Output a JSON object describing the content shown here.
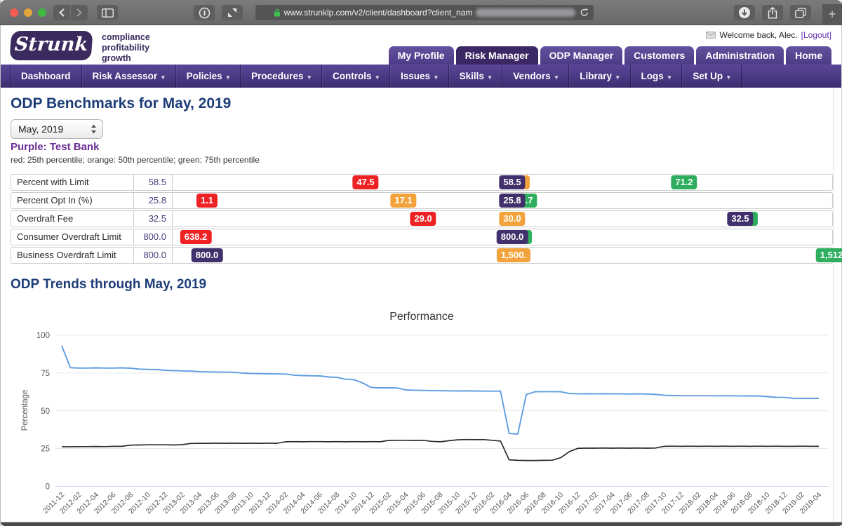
{
  "browser": {
    "url": "www.strunklp.com/v2/client/dashboard?client_nam",
    "new_tab_label": "+"
  },
  "header": {
    "logo_text": "Strunk",
    "tagline_lines": [
      "compliance",
      "profitability",
      "growth"
    ],
    "welcome_text": "Welcome back, Alec.",
    "logout_label": "[Logout]",
    "tabs": [
      {
        "label": "My Profile",
        "active": false
      },
      {
        "label": "Risk Manager",
        "active": true
      },
      {
        "label": "ODP Manager",
        "active": false
      },
      {
        "label": "Customers",
        "active": false
      },
      {
        "label": "Administration",
        "active": false
      },
      {
        "label": "Home",
        "active": false
      }
    ]
  },
  "nav": {
    "items": [
      {
        "label": "Dashboard",
        "caret": false
      },
      {
        "label": "Risk Assessor",
        "caret": true
      },
      {
        "label": "Policies",
        "caret": true
      },
      {
        "label": "Procedures",
        "caret": true
      },
      {
        "label": "Controls",
        "caret": true
      },
      {
        "label": "Issues",
        "caret": true
      },
      {
        "label": "Skills",
        "caret": true
      },
      {
        "label": "Vendors",
        "caret": true
      },
      {
        "label": "Library",
        "caret": true
      },
      {
        "label": "Logs",
        "caret": true
      },
      {
        "label": "Set Up",
        "caret": true
      }
    ]
  },
  "benchmarks": {
    "title": "ODP Benchmarks for May, 2019",
    "month_select_value": "May, 2019",
    "bank_label": "Purple: Test Bank",
    "legend": "red: 25th percentile; orange: 50th percentile; green: 75th percentile",
    "colors": {
      "red": "#ee2224",
      "orange": "#f2a33c",
      "green": "#2eae5e",
      "purple": "#41306b"
    },
    "rows": [
      {
        "label": "Percent with Limit",
        "value": "58.5",
        "badges": [
          {
            "text": "",
            "color": "orange",
            "center": 494,
            "z": 1,
            "sliver": true
          },
          {
            "text": "47.5",
            "color": "red",
            "center": 275,
            "z": 2
          },
          {
            "text": "58.5",
            "color": "purple",
            "center": 484,
            "z": 3
          },
          {
            "text": "71.2",
            "color": "green",
            "center": 729,
            "z": 2
          }
        ]
      },
      {
        "label": "Percent Opt In (%)",
        "value": "25.8",
        "badges": [
          {
            "text": "25.7",
            "color": "green",
            "center": 501,
            "z": 1
          },
          {
            "text": "1.1",
            "color": "red",
            "center": 49,
            "z": 2
          },
          {
            "text": "17.1",
            "color": "orange",
            "center": 329,
            "z": 2
          },
          {
            "text": "25.8",
            "color": "purple",
            "center": 484,
            "z": 3
          }
        ]
      },
      {
        "label": "Overdraft Fee",
        "value": "32.5",
        "badges": [
          {
            "text": "",
            "color": "green",
            "center": 819,
            "z": 1,
            "sliver": true
          },
          {
            "text": "29.0",
            "color": "red",
            "center": 357,
            "z": 2
          },
          {
            "text": "30.0",
            "color": "orange",
            "center": 484,
            "z": 2
          },
          {
            "text": "32.5",
            "color": "purple",
            "center": 809,
            "z": 3
          }
        ]
      },
      {
        "label": "Consumer Overdraft Limit",
        "value": "800.0",
        "badges": [
          {
            "text": "",
            "color": "green",
            "center": 497,
            "z": 1,
            "sliver": true
          },
          {
            "text": "638.2",
            "color": "red",
            "center": 33,
            "z": 2
          },
          {
            "text": "800.0",
            "color": "purple",
            "center": 484,
            "z": 3
          }
        ]
      },
      {
        "label": "Business Overdraft Limit",
        "value": "800.0",
        "badges": [
          {
            "text": "800.0",
            "color": "purple",
            "center": 49,
            "z": 2
          },
          {
            "text": "1,500.",
            "color": "orange",
            "center": 486,
            "z": 2
          },
          {
            "text": "1,512",
            "color": "green",
            "center": 939,
            "z": 2
          }
        ]
      }
    ]
  },
  "trends": {
    "title": "ODP Trends through May, 2019"
  },
  "chart_data": {
    "type": "line",
    "title": "Performance",
    "ylabel": "Percentage",
    "ylim": [
      0,
      100
    ],
    "yticks": [
      0,
      25,
      50,
      75,
      100
    ],
    "grid": true,
    "legend": "none",
    "x_start": "2011-12",
    "x_end": "2019-04",
    "x_step_months": 1,
    "x_tick_labels": [
      "2011-12",
      "2012-02",
      "2012-04",
      "2012-06",
      "2012-08",
      "2012-10",
      "2012-12",
      "2013-02",
      "2013-04",
      "2013-06",
      "2013-08",
      "2013-10",
      "2013-12",
      "2014-02",
      "2014-04",
      "2014-06",
      "2014-08",
      "2014-10",
      "2014-12",
      "2015-02",
      "2015-04",
      "2015-06",
      "2015-08",
      "2015-10",
      "2015-12",
      "2016-02",
      "2016-04",
      "2016-06",
      "2016-08",
      "2016-10",
      "2016-12",
      "2017-02",
      "2017-04",
      "2017-06",
      "2017-08",
      "2017-10",
      "2017-12",
      "2018-02",
      "2018-04",
      "2018-06",
      "2018-08",
      "2018-10",
      "2018-12",
      "2019-02",
      "2019-04"
    ],
    "series": [
      {
        "name": "blue-line",
        "color": "#5d9de2",
        "values": [
          93,
          78.5,
          78.3,
          78.3,
          78.4,
          78.3,
          78.3,
          78.4,
          78.2,
          77.6,
          77.4,
          77.3,
          76.8,
          76.6,
          76.4,
          76.3,
          75.9,
          75.8,
          75.7,
          75.6,
          75.5,
          75.0,
          74.7,
          74.6,
          74.5,
          74.4,
          74.3,
          73.6,
          73.3,
          73.2,
          73.1,
          72.4,
          72.1,
          70.9,
          70.6,
          68.4,
          65.4,
          65.2,
          65.2,
          65.1,
          63.8,
          63.6,
          63.5,
          63.4,
          63.3,
          63.2,
          63.1,
          63.2,
          63.1,
          63.0,
          63.0,
          63.0,
          35.0,
          34.6,
          60.8,
          62.6,
          62.7,
          62.7,
          62.6,
          61.4,
          61.2,
          61.3,
          61.2,
          61.3,
          61.2,
          61.2,
          61.1,
          61.2,
          61.1,
          60.9,
          60.3,
          60.1,
          60.0,
          60.0,
          60.0,
          60.0,
          59.9,
          60.0,
          59.9,
          59.8,
          59.9,
          59.8,
          59.4,
          59.0,
          58.9,
          58.3,
          58.2,
          58.2,
          58.2
        ]
      },
      {
        "name": "black-line",
        "color": "#2b2b2b",
        "values": [
          26.2,
          26.2,
          26.3,
          26.3,
          26.4,
          26.3,
          26.5,
          26.5,
          27.3,
          27.4,
          27.5,
          27.5,
          27.5,
          27.4,
          27.6,
          28.4,
          28.5,
          28.5,
          28.6,
          28.5,
          28.6,
          28.5,
          28.6,
          28.5,
          28.6,
          28.5,
          29.5,
          29.6,
          29.5,
          29.6,
          29.6,
          29.5,
          29.6,
          29.5,
          29.6,
          29.5,
          29.6,
          29.5,
          30.4,
          30.5,
          30.5,
          30.4,
          30.5,
          29.8,
          29.5,
          30.2,
          30.8,
          31.0,
          30.9,
          31.0,
          30.5,
          30.0,
          17.6,
          17.2,
          17.1,
          17.1,
          17.2,
          17.3,
          19.0,
          23.0,
          25.2,
          25.3,
          25.3,
          25.4,
          25.3,
          25.4,
          25.3,
          25.4,
          25.3,
          25.4,
          26.5,
          26.6,
          26.5,
          26.6,
          26.5,
          26.6,
          26.5,
          26.6,
          26.5,
          26.6,
          26.5,
          26.6,
          26.5,
          26.6,
          26.5,
          26.5,
          26.6,
          26.5,
          26.5
        ]
      }
    ]
  }
}
